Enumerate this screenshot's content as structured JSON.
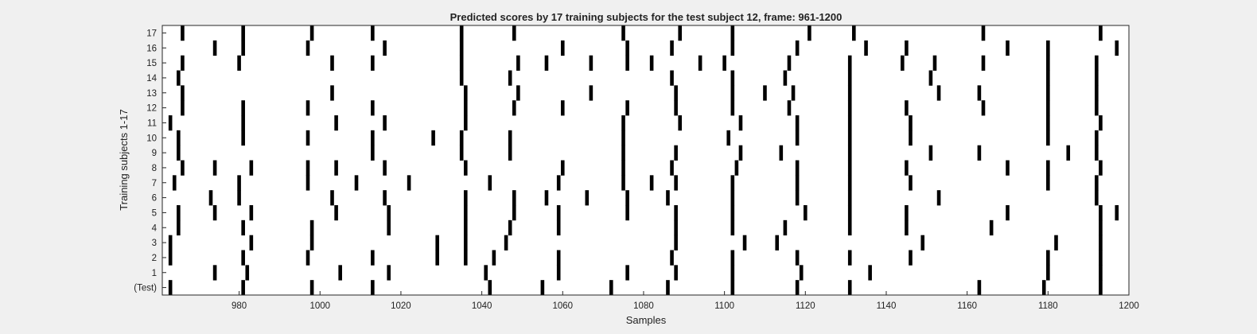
{
  "chart_data": {
    "type": "raster",
    "title": "Predicted scores by 17 training subjects for the test subject 12, frame: 961-1200",
    "xlabel": "Samples",
    "ylabel": "Training subjects 1-17",
    "xlim": [
      961,
      1200
    ],
    "xticks": [
      980,
      1000,
      1020,
      1040,
      1060,
      1080,
      1100,
      1120,
      1140,
      1160,
      1180,
      1200
    ],
    "xtick_labels": [
      "980",
      "1000",
      "1020",
      "1040",
      "1060",
      "1080",
      "1100",
      "1120",
      "1140",
      "1160",
      "1180",
      "1200"
    ],
    "ytick_labels": [
      "(Test)",
      "1",
      "2",
      "3",
      "4",
      "5",
      "6",
      "7",
      "8",
      "9",
      "10",
      "11",
      "12",
      "13",
      "14",
      "15",
      "16",
      "17"
    ],
    "grid": false,
    "legend": "none",
    "colors": {
      "figure_bg": "#f0f0f0",
      "axes_bg": "#ffffff",
      "mark": "#000000"
    },
    "series": [
      {
        "label": "(Test)",
        "events": [
          963,
          981,
          998,
          1013,
          1042,
          1055,
          1072,
          1086,
          1102,
          1118,
          1131,
          1163,
          1179,
          1193
        ]
      },
      {
        "label": "1",
        "events": [
          974,
          982,
          1005,
          1017,
          1041,
          1059,
          1076,
          1088,
          1102,
          1119,
          1136,
          1180,
          1193
        ]
      },
      {
        "label": "2",
        "events": [
          963,
          981,
          997,
          1013,
          1029,
          1036,
          1043,
          1059,
          1087,
          1102,
          1118,
          1131,
          1146,
          1180,
          1193
        ]
      },
      {
        "label": "3",
        "events": [
          963,
          983,
          998,
          1029,
          1036,
          1046,
          1088,
          1105,
          1113,
          1149,
          1182,
          1193
        ]
      },
      {
        "label": "4",
        "events": [
          965,
          981,
          998,
          1017,
          1036,
          1047,
          1059,
          1088,
          1102,
          1115,
          1131,
          1145,
          1166,
          1193
        ]
      },
      {
        "label": "5",
        "events": [
          965,
          974,
          983,
          1004,
          1017,
          1036,
          1048,
          1059,
          1076,
          1088,
          1102,
          1120,
          1131,
          1145,
          1170,
          1193,
          1197
        ]
      },
      {
        "label": "6",
        "events": [
          973,
          980,
          1003,
          1016,
          1036,
          1048,
          1056,
          1066,
          1076,
          1086,
          1102,
          1118,
          1131,
          1153,
          1192
        ]
      },
      {
        "label": "7",
        "events": [
          964,
          980,
          997,
          1009,
          1022,
          1042,
          1059,
          1075,
          1082,
          1088,
          1102,
          1118,
          1131,
          1146,
          1180,
          1192
        ]
      },
      {
        "label": "8",
        "events": [
          966,
          974,
          983,
          997,
          1004,
          1016,
          1036,
          1060,
          1075,
          1087,
          1103,
          1118,
          1131,
          1145,
          1170,
          1180,
          1193
        ]
      },
      {
        "label": "9",
        "events": [
          965,
          1013,
          1035,
          1047,
          1075,
          1088,
          1104,
          1114,
          1131,
          1151,
          1163,
          1185,
          1192
        ]
      },
      {
        "label": "10",
        "events": [
          965,
          981,
          997,
          1013,
          1028,
          1035,
          1047,
          1075,
          1101,
          1118,
          1131,
          1146,
          1180,
          1192
        ]
      },
      {
        "label": "11",
        "events": [
          963,
          981,
          1004,
          1016,
          1036,
          1075,
          1089,
          1104,
          1118,
          1131,
          1146,
          1180,
          1193
        ]
      },
      {
        "label": "12",
        "events": [
          966,
          981,
          997,
          1013,
          1036,
          1048,
          1060,
          1076,
          1088,
          1102,
          1116,
          1131,
          1145,
          1164,
          1180,
          1192
        ]
      },
      {
        "label": "13",
        "events": [
          966,
          1003,
          1036,
          1049,
          1067,
          1088,
          1102,
          1110,
          1117,
          1131,
          1153,
          1163,
          1180,
          1192
        ]
      },
      {
        "label": "14",
        "events": [
          965,
          1035,
          1047,
          1087,
          1102,
          1115,
          1131,
          1151,
          1180,
          1192
        ]
      },
      {
        "label": "15",
        "events": [
          966,
          980,
          1003,
          1013,
          1035,
          1049,
          1056,
          1067,
          1076,
          1082,
          1094,
          1100,
          1116,
          1131,
          1144,
          1152,
          1164,
          1180,
          1192
        ]
      },
      {
        "label": "16",
        "events": [
          974,
          981,
          997,
          1016,
          1035,
          1060,
          1076,
          1087,
          1102,
          1118,
          1135,
          1145,
          1170,
          1180,
          1197
        ]
      },
      {
        "label": "17",
        "events": [
          966,
          981,
          998,
          1013,
          1035,
          1048,
          1075,
          1089,
          1102,
          1121,
          1132,
          1164,
          1193
        ]
      }
    ]
  }
}
